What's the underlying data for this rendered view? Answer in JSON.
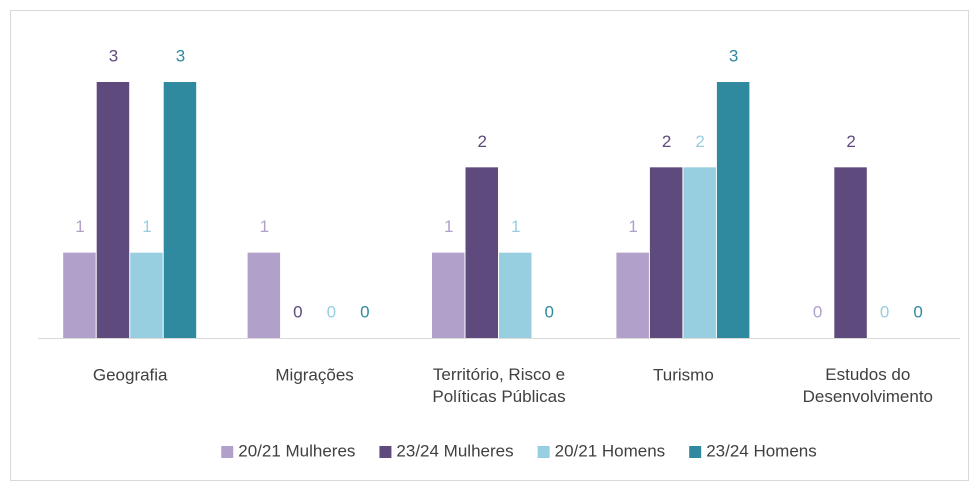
{
  "chart_data": {
    "type": "bar",
    "categories": [
      "Geografia",
      "Migrações",
      "Território, Risco e\nPolíticas Públicas",
      "Turismo",
      "Estudos do\nDesenvolvimento"
    ],
    "series": [
      {
        "name": "20/21 Mulheres",
        "color": "#b1a0c9",
        "values": [
          1,
          1,
          1,
          1,
          0
        ]
      },
      {
        "name": "23/24 Mulheres",
        "color": "#5f4a7d",
        "values": [
          3,
          0,
          2,
          2,
          2
        ]
      },
      {
        "name": "20/21 Homens",
        "color": "#97cfe0",
        "values": [
          1,
          0,
          1,
          2,
          0
        ]
      },
      {
        "name": "23/24 Homens",
        "color": "#2f8aa0",
        "values": [
          3,
          0,
          0,
          3,
          0
        ]
      }
    ],
    "legend": "bottom"
  }
}
